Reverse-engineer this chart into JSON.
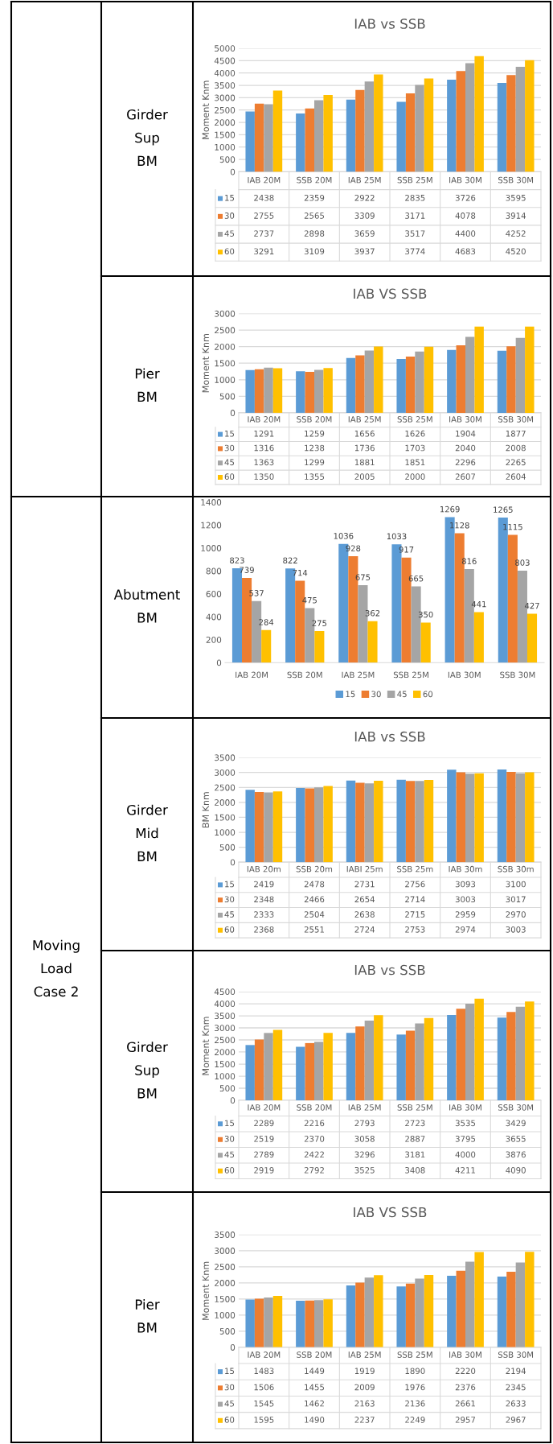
{
  "chart_data": [
    {
      "type": "bar",
      "title": "IAB vs SSB",
      "ylabel": "Moment Knm",
      "categories": [
        "IAB 20M",
        "SSB 20M",
        "IAB 25M",
        "SSB 25M",
        "IAB 30M",
        "SSB 30M"
      ],
      "series": [
        {
          "name": "15",
          "color": "#5b9bd5",
          "values": [
            2438,
            2359,
            2922,
            2835,
            3726,
            3595
          ]
        },
        {
          "name": "30",
          "color": "#ed7d31",
          "values": [
            2755,
            2565,
            3309,
            3171,
            4078,
            3914
          ]
        },
        {
          "name": "45",
          "color": "#a5a5a5",
          "values": [
            2737,
            2898,
            3659,
            3517,
            4400,
            4252
          ]
        },
        {
          "name": "60",
          "color": "#ffc000",
          "values": [
            3291,
            3109,
            3937,
            3774,
            4683,
            4520
          ]
        }
      ],
      "ylim": [
        0,
        5000
      ],
      "yticks": [
        0,
        500,
        1000,
        1500,
        2000,
        2500,
        3000,
        3500,
        4000,
        4500,
        5000
      ],
      "grid": "y",
      "legend": "bottom",
      "data_labels": true,
      "annotations": [
        "Girder\nSup\nBM"
      ]
    },
    {
      "type": "bar",
      "title": "IAB VS SSB",
      "ylabel": "Moment Knm",
      "categories": [
        "IAB 20M",
        "SSB 20M",
        "IAB 25M",
        "SSB 25M",
        "IAB 30M",
        "SSB 30M"
      ],
      "series": [
        {
          "name": "15",
          "color": "#5b9bd5",
          "values": [
            1291,
            1259,
            1656,
            1626,
            1904,
            1877
          ]
        },
        {
          "name": "30",
          "color": "#ed7d31",
          "values": [
            1316,
            1238,
            1736,
            1703,
            2040,
            2008
          ]
        },
        {
          "name": "45",
          "color": "#a5a5a5",
          "values": [
            1363,
            1299,
            1881,
            1851,
            2296,
            2265
          ]
        },
        {
          "name": "60",
          "color": "#ffc000",
          "values": [
            1350,
            1355,
            2005,
            2000,
            2607,
            2604
          ]
        }
      ],
      "ylim": [
        0,
        3000
      ],
      "yticks": [
        0,
        500,
        1000,
        1500,
        2000,
        2500,
        3000
      ],
      "grid": "y",
      "legend": "bottom",
      "data_labels": true,
      "annotations": [
        "Pier\nBM"
      ]
    },
    {
      "type": "bar",
      "categories": [
        "IAB 20M",
        "SSB 20M",
        "IAB 25M",
        "SSB 25M",
        "IAB 30M",
        "SSB 30M"
      ],
      "series": [
        {
          "name": "15",
          "color": "#5b9bd5",
          "values": [
            823,
            822,
            1036,
            1033,
            1269,
            1265
          ],
          "value_labels": [
            "823",
            "822",
            "1036",
            "1033",
            "1269",
            "1265"
          ]
        },
        {
          "name": "30",
          "color": "#ed7d31",
          "values": [
            739,
            714,
            928,
            917,
            1128,
            1115
          ],
          "value_labels": [
            "739",
            "714",
            "928",
            "917",
            "1128",
            "1115"
          ]
        },
        {
          "name": "45",
          "color": "#a5a5a5",
          "values": [
            537,
            475,
            675,
            665,
            816,
            803
          ],
          "value_labels": [
            "537",
            "475",
            "675",
            "665",
            "816",
            "803"
          ]
        },
        {
          "name": "60",
          "color": "#ffc000",
          "values": [
            284,
            275,
            362,
            350,
            441,
            427
          ],
          "value_labels": [
            "284",
            "275",
            "362",
            "350",
            "441",
            "427"
          ]
        }
      ],
      "ylim": [
        0,
        1400
      ],
      "yticks": [
        0,
        200,
        400,
        600,
        800,
        1000,
        1200,
        1400
      ],
      "legend": "bottom",
      "annotations": [
        "Abutment\nBM",
        "Moving\nLoad\nCase 2"
      ]
    },
    {
      "type": "bar",
      "title": "IAB vs SSB",
      "ylabel": "BM Knm",
      "categories": [
        "IAB 20m",
        "SSB 20m",
        "IABI 25m",
        "SSB 25m",
        "IAB 30m",
        "SSB 30m"
      ],
      "series": [
        {
          "name": "15",
          "color": "#5b9bd5",
          "values": [
            2419,
            2478,
            2731,
            2756,
            3093,
            3100
          ]
        },
        {
          "name": "30",
          "color": "#ed7d31",
          "values": [
            2348,
            2466,
            2654,
            2714,
            3003,
            3017
          ]
        },
        {
          "name": "45",
          "color": "#a5a5a5",
          "values": [
            2333,
            2504,
            2638,
            2715,
            2959,
            2970
          ]
        },
        {
          "name": "60",
          "color": "#ffc000",
          "values": [
            2368,
            2551,
            2724,
            2753,
            2974,
            3003
          ]
        }
      ],
      "ylim": [
        0,
        3500
      ],
      "yticks": [
        0,
        500,
        1000,
        1500,
        2000,
        2500,
        3000,
        3500
      ],
      "grid": "y",
      "legend": "bottom",
      "data_labels": true,
      "annotations": [
        "Girder\nMid\nBM"
      ]
    },
    {
      "type": "bar",
      "title": "IAB vs SSB",
      "ylabel": "Moment Knm",
      "categories": [
        "IAB 20M",
        "SSB 20M",
        "IAB 25M",
        "SSB 25M",
        "IAB 30M",
        "SSB 30M"
      ],
      "series": [
        {
          "name": "15",
          "color": "#5b9bd5",
          "values": [
            2289,
            2216,
            2793,
            2723,
            3535,
            3429
          ]
        },
        {
          "name": "30",
          "color": "#ed7d31",
          "values": [
            2519,
            2370,
            3058,
            2887,
            3795,
            3655
          ]
        },
        {
          "name": "45",
          "color": "#a5a5a5",
          "values": [
            2789,
            2422,
            3296,
            3181,
            4000,
            3876
          ]
        },
        {
          "name": "60",
          "color": "#ffc000",
          "values": [
            2919,
            2792,
            3525,
            3408,
            4211,
            4090
          ]
        }
      ],
      "ylim": [
        0,
        4500
      ],
      "yticks": [
        0,
        500,
        1000,
        1500,
        2000,
        2500,
        3000,
        3500,
        4000,
        4500
      ],
      "grid": "y",
      "legend": "bottom",
      "data_labels": true,
      "annotations": [
        "Girder\nSup\nBM"
      ]
    },
    {
      "type": "bar",
      "title": "IAB VS SSB",
      "ylabel": "Moment Knm",
      "categories": [
        "IAB 20M",
        "SSB 20M",
        "IAB 25M",
        "SSB 25M",
        "IAB 30M",
        "SSB 30M"
      ],
      "series": [
        {
          "name": "15",
          "color": "#5b9bd5",
          "values": [
            1483,
            1449,
            1919,
            1890,
            2220,
            2194
          ]
        },
        {
          "name": "30",
          "color": "#ed7d31",
          "values": [
            1506,
            1455,
            2009,
            1976,
            2376,
            2345
          ]
        },
        {
          "name": "45",
          "color": "#a5a5a5",
          "values": [
            1545,
            1462,
            2163,
            2136,
            2661,
            2633
          ]
        },
        {
          "name": "60",
          "color": "#ffc000",
          "values": [
            1595,
            1490,
            2237,
            2249,
            2957,
            2967
          ]
        }
      ],
      "ylim": [
        0,
        3500
      ],
      "yticks": [
        0,
        500,
        1000,
        1500,
        2000,
        2500,
        3000,
        3500
      ],
      "grid": "y",
      "legend": "bottom",
      "data_labels": true,
      "annotations": [
        "Pier\nBM"
      ]
    }
  ]
}
